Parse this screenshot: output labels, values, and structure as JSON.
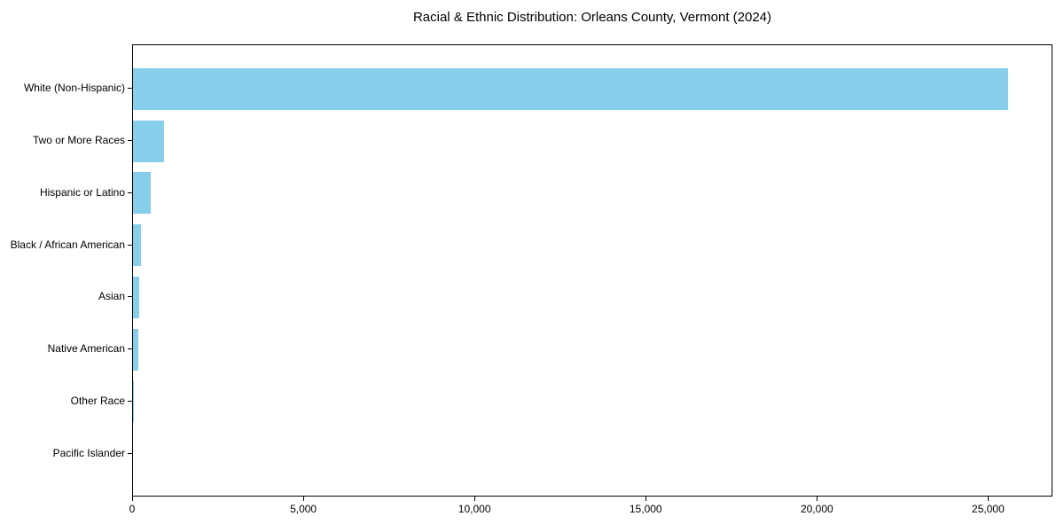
{
  "chart_data": {
    "type": "bar",
    "orientation": "horizontal",
    "title": "Racial & Ethnic Distribution: Orleans County, Vermont (2024)",
    "categories": [
      "White (Non-Hispanic)",
      "Two or More Races",
      "Hispanic or Latino",
      "Black / African American",
      "Asian",
      "Native American",
      "Other Race",
      "Pacific Islander"
    ],
    "values": [
      25600,
      900,
      520,
      240,
      180,
      145,
      30,
      0
    ],
    "xlabel": "",
    "ylabel": "",
    "xlim": [
      0,
      26880
    ],
    "x_ticks": [
      0,
      5000,
      10000,
      15000,
      20000,
      25000
    ],
    "x_tick_labels": [
      "0",
      "5,000",
      "10,000",
      "15,000",
      "20,000",
      "25,000"
    ],
    "bar_color": "#87CEEB",
    "axis_color": "#000000",
    "text_color": "#000000",
    "background": "#ffffff",
    "grid": false,
    "legend": null
  }
}
